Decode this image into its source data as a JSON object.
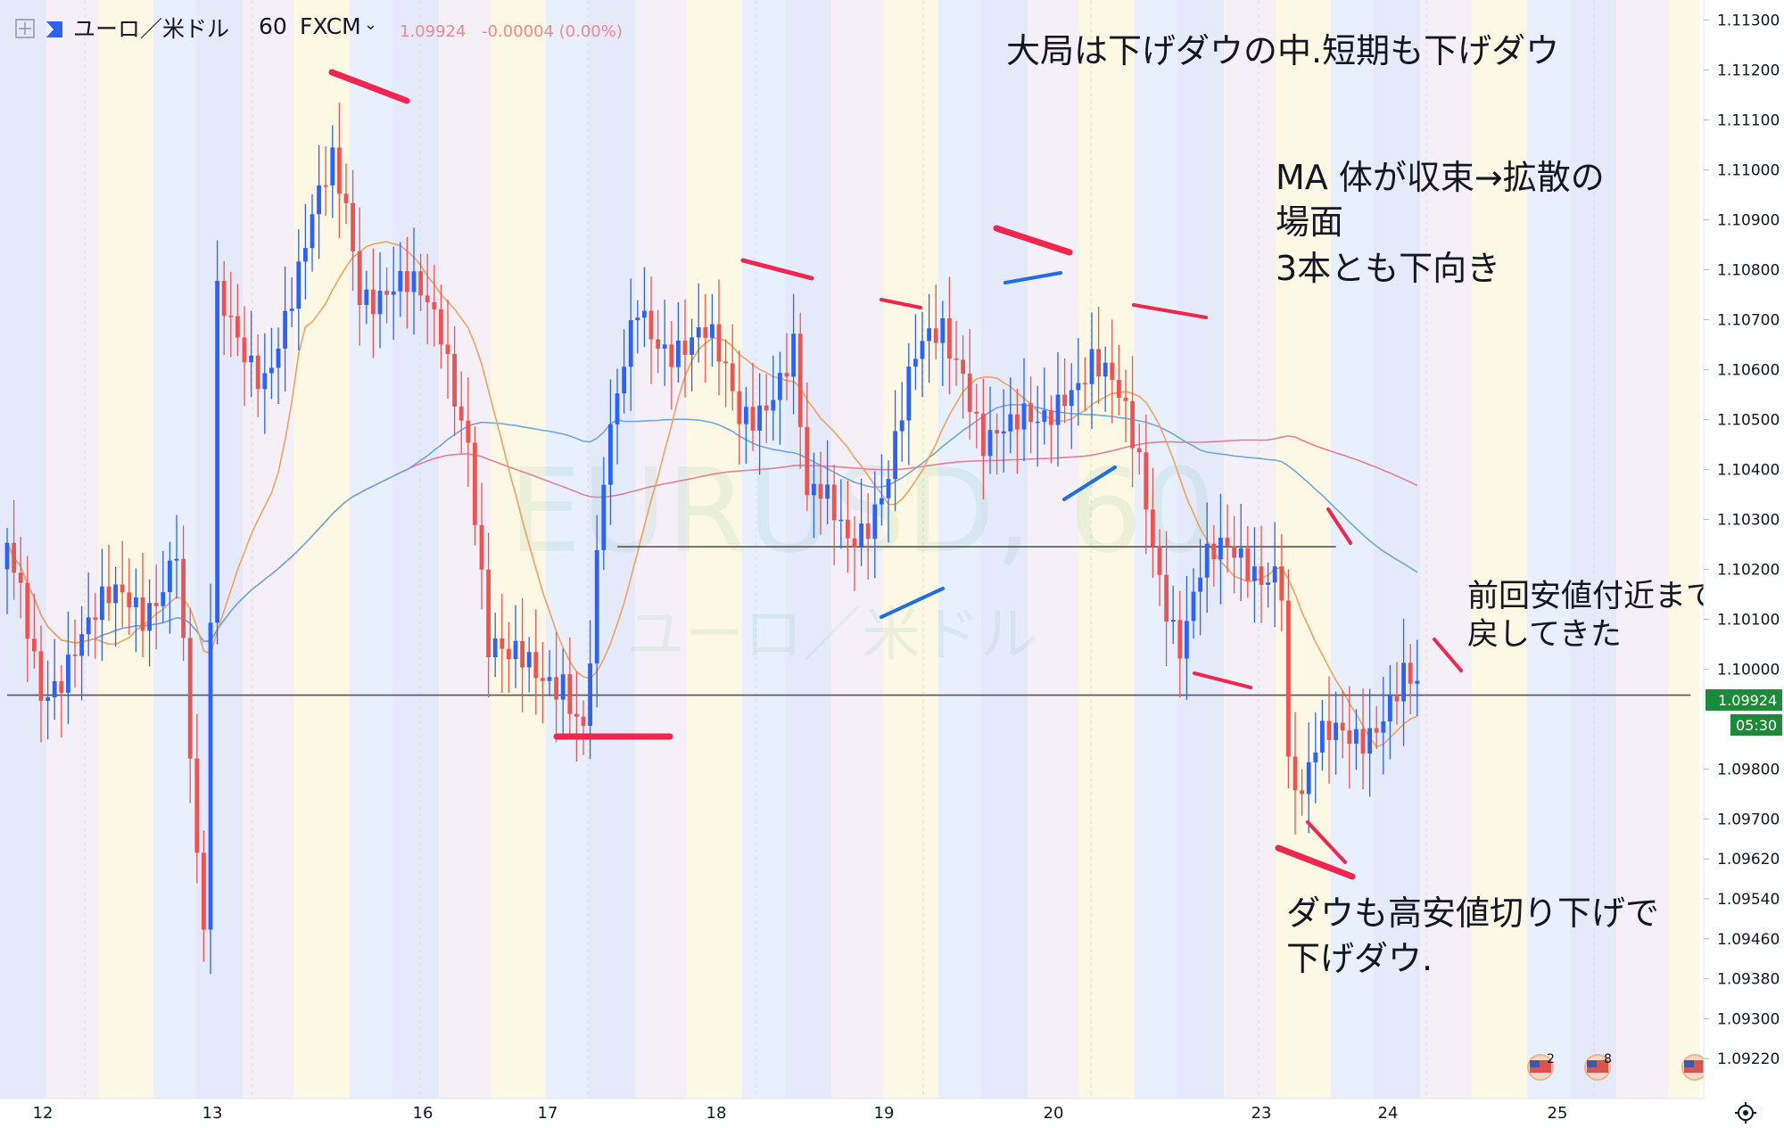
{
  "header": {
    "symbol": "ユーロ／米ドル",
    "interval": "60",
    "broker": "FXCM",
    "last_price": "1.09924",
    "change": "-0.00004 (0.00%)"
  },
  "watermark": {
    "ticker": "EURUSD, 60",
    "name": "ユーロ／米ドル"
  },
  "price_badge": {
    "price": "1.09924",
    "countdown": "05:30"
  },
  "notes": {
    "trend_line1": "大局は下げダウの中.短期も下げダウ",
    "ma_line1": "MA 体が収束→拡散の",
    "ma_line2": "場面",
    "ma_line3": "3本とも下向き",
    "pullback_line1": "前回安値付近まで",
    "pullback_line2": "戻してきた",
    "dow_line1": "ダウも高安値切り下げで",
    "dow_line2": "下げダウ."
  },
  "events": {
    "event_a_count": "2",
    "event_b_count": "8"
  },
  "colors": {
    "up_candle": "#2962ff",
    "down_candle": "#ef5350",
    "ma_short": "#f5a15a",
    "ma_mid": "#6fa8dc",
    "ma_long": "#e57f98",
    "annotation_red": "#f0264f",
    "annotation_blue": "#1f6fe0",
    "badge_green": "#1d8a3a"
  },
  "chart_data": {
    "type": "candlestick",
    "symbol": "EURUSD",
    "timeframe": "60",
    "y_axis": {
      "min": 1.0914,
      "max": 1.1134,
      "labels": [
        "1.11300",
        "1.11200",
        "1.11100",
        "1.11000",
        "1.10900",
        "1.10800",
        "1.10700",
        "1.10600",
        "1.10500",
        "1.10400",
        "1.10300",
        "1.10200",
        "1.10100",
        "1.10000",
        "1.09800",
        "1.09700",
        "1.09620",
        "1.09540",
        "1.09460",
        "1.09380",
        "1.09300",
        "1.09220"
      ]
    },
    "x_axis": {
      "labels": [
        "12",
        "13",
        "16",
        "17",
        "18",
        "19",
        "20",
        "23",
        "24",
        "25"
      ]
    },
    "horizontal_lines": [
      {
        "price": 1.10245,
        "from_hour": 90,
        "to_hour": 196
      },
      {
        "price": 1.09948,
        "from_hour": 0,
        "to_hour": 262
      }
    ],
    "anchors": [
      [
        0,
        1.102
      ],
      [
        5,
        1.0996
      ],
      [
        10,
        1.1008
      ],
      [
        15,
        1.101
      ],
      [
        20,
        1.1012
      ],
      [
        25,
        1.1028
      ],
      [
        28,
        1.096
      ],
      [
        29,
        1.0942
      ],
      [
        31,
        1.107
      ],
      [
        34,
        1.1066
      ],
      [
        38,
        1.1063
      ],
      [
        43,
        1.1076
      ],
      [
        48,
        1.11
      ],
      [
        50,
        1.1095
      ],
      [
        52,
        1.108
      ],
      [
        57,
        1.1075
      ],
      [
        60,
        1.1072
      ],
      [
        64,
        1.1068
      ],
      [
        68,
        1.105
      ],
      [
        71,
        1.1005
      ],
      [
        74,
        1.0998
      ],
      [
        78,
        1.0998
      ],
      [
        82,
        1.1002
      ],
      [
        85,
        1.099
      ],
      [
        86,
        1.1003
      ],
      [
        88,
        1.1035
      ],
      [
        93,
        1.1072
      ],
      [
        98,
        1.1068
      ],
      [
        103,
        1.1064
      ],
      [
        108,
        1.105
      ],
      [
        112,
        1.1058
      ],
      [
        116,
        1.1064
      ],
      [
        118,
        1.103
      ],
      [
        120,
        1.1031
      ],
      [
        124,
        1.1028
      ],
      [
        130,
        1.104
      ],
      [
        134,
        1.1058
      ],
      [
        138,
        1.1068
      ],
      [
        141,
        1.1064
      ],
      [
        144,
        1.1048
      ],
      [
        148,
        1.1044
      ],
      [
        152,
        1.1048
      ],
      [
        156,
        1.106
      ],
      [
        160,
        1.1062
      ],
      [
        164,
        1.105
      ],
      [
        167,
        1.104
      ],
      [
        170,
        1.1022
      ],
      [
        173,
        1.1008
      ],
      [
        176,
        1.1018
      ],
      [
        180,
        1.102
      ],
      [
        184,
        1.1022
      ],
      [
        187,
        1.1024
      ],
      [
        188,
        1.102
      ],
      [
        189,
        1.0982
      ],
      [
        191,
        1.0972
      ],
      [
        193,
        1.098
      ],
      [
        197,
        1.0987
      ],
      [
        202,
        1.0993
      ],
      [
        206,
        1.0996
      ],
      [
        208,
        1.0992
      ]
    ],
    "moving_averages": [
      {
        "name": "short",
        "color": "#f5a15a"
      },
      {
        "name": "mid",
        "color": "#6fa8dc"
      },
      {
        "name": "long",
        "color": "#e57f98"
      }
    ]
  }
}
